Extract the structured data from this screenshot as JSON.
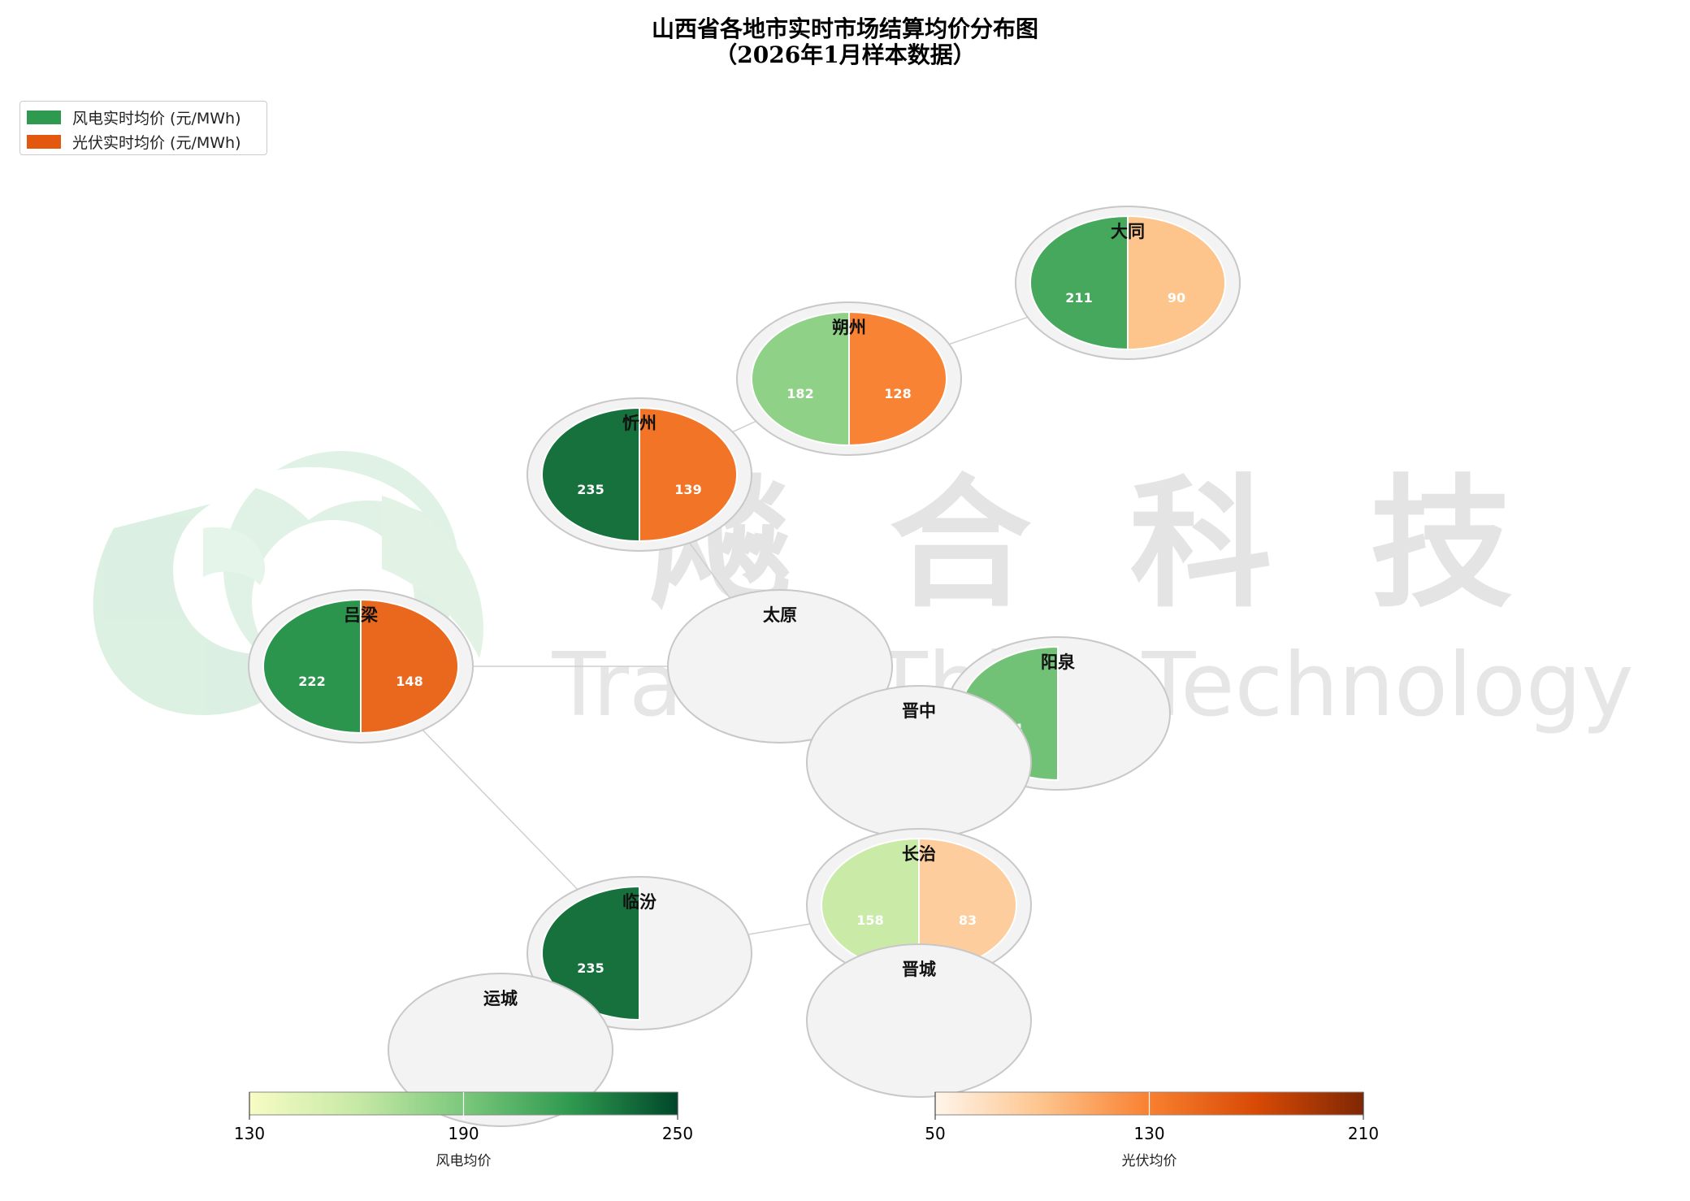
{
  "title_line1": "山西省各地市实时市场结算均价分布图",
  "title_line2": "（2026年1月样本数据）",
  "legend": {
    "wind": {
      "label": "风电实时均价 (元/MWh)",
      "color": "#2e9a4f"
    },
    "solar": {
      "label": "光伏实时均价 (元/MWh)",
      "color": "#e4570e"
    }
  },
  "watermark": {
    "text_cn": "飚 合 科 技",
    "text_en": "TradingThink Technology"
  },
  "chart_data": {
    "type": "pie",
    "description_units": "元/MWh",
    "cities": [
      {
        "name": "大同",
        "wind": 211,
        "solar": 90
      },
      {
        "name": "朔州",
        "wind": 182,
        "solar": 128
      },
      {
        "name": "忻州",
        "wind": 235,
        "solar": 139
      },
      {
        "name": "吕梁",
        "wind": 222,
        "solar": 148
      },
      {
        "name": "太原",
        "wind": null,
        "solar": null
      },
      {
        "name": "阳泉",
        "wind": 194,
        "solar": null
      },
      {
        "name": "晋中",
        "wind": null,
        "solar": null
      },
      {
        "name": "长治",
        "wind": 158,
        "solar": 83
      },
      {
        "name": "临汾",
        "wind": 235,
        "solar": null
      },
      {
        "name": "晋城",
        "wind": null,
        "solar": null
      },
      {
        "name": "运城",
        "wind": null,
        "solar": null
      }
    ],
    "connections": [
      [
        "大同",
        "朔州"
      ],
      [
        "朔州",
        "忻州"
      ],
      [
        "忻州",
        "太原"
      ],
      [
        "吕梁",
        "太原"
      ],
      [
        "吕梁",
        "临汾"
      ],
      [
        "临汾",
        "长治"
      ]
    ],
    "colorbars": [
      {
        "label": "风电均价",
        "cmap": "Greens",
        "range": [
          130,
          250
        ],
        "ticks": [
          "130",
          "190",
          "250"
        ]
      },
      {
        "label": "光伏均价",
        "cmap": "Oranges",
        "range": [
          50,
          210
        ],
        "ticks": [
          "50",
          "130",
          "210"
        ]
      }
    ]
  }
}
